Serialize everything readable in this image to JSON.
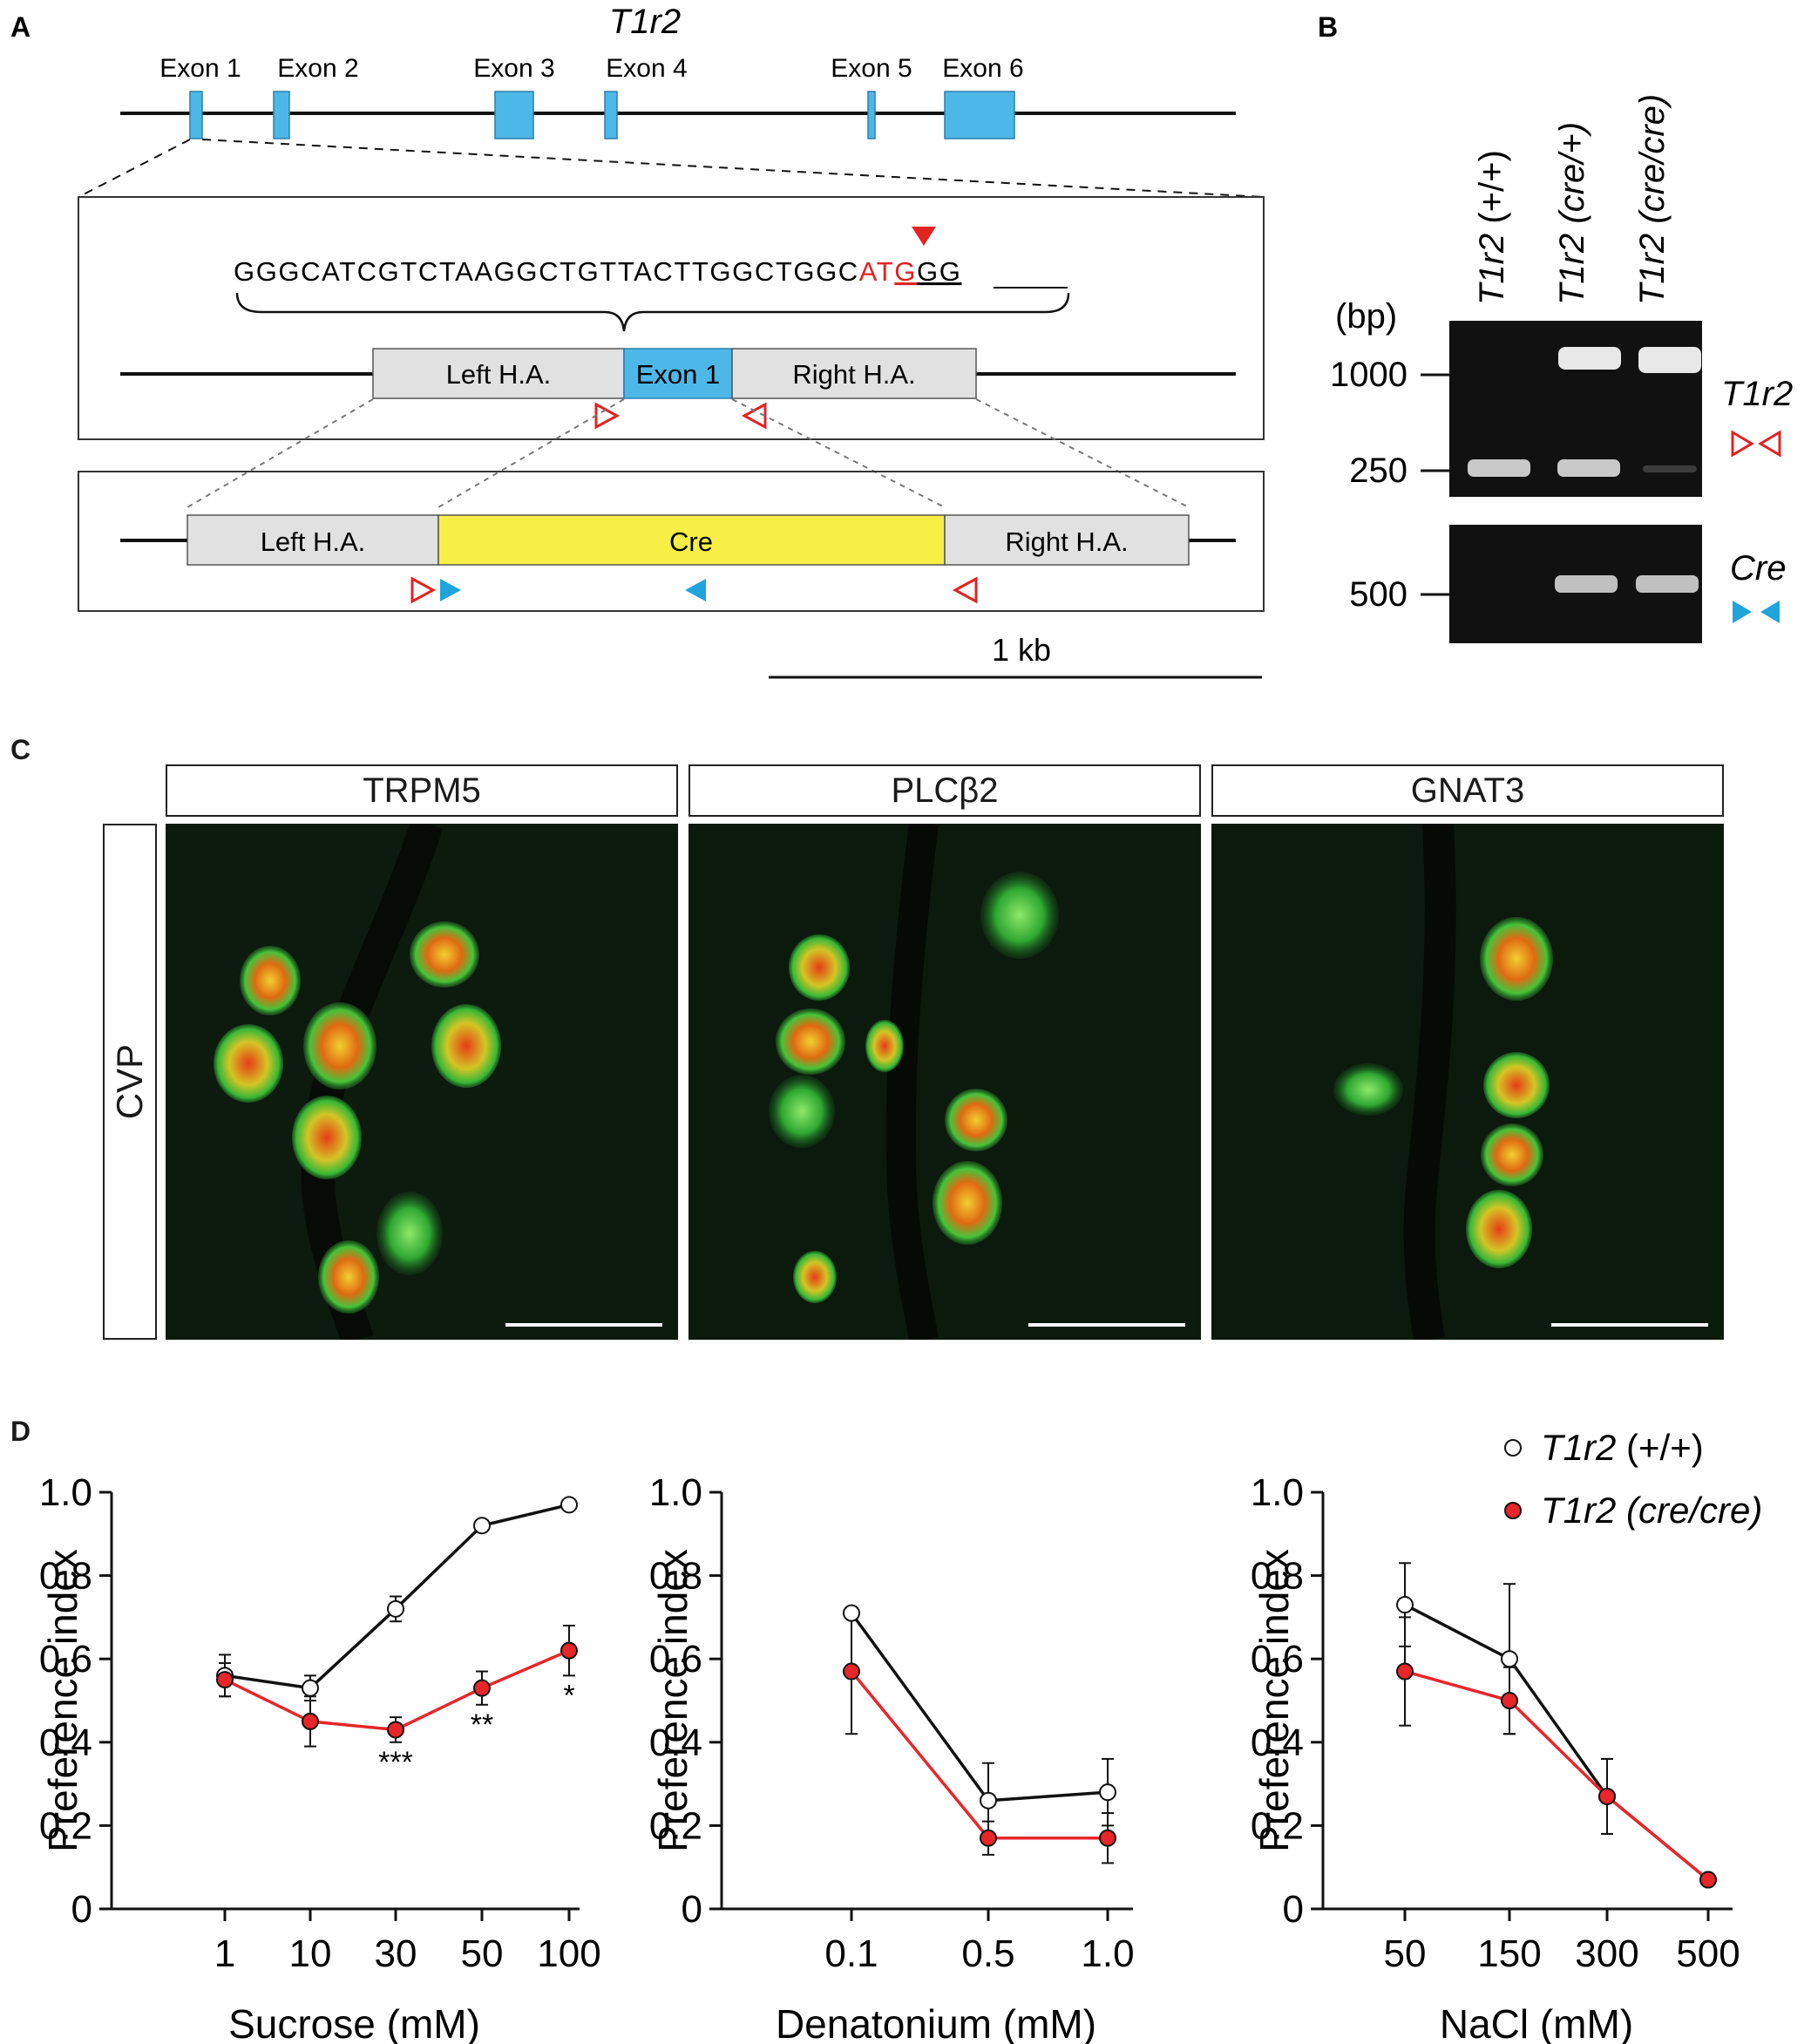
{
  "panels": {
    "a": "A",
    "b": "B",
    "c": "C",
    "d": "D"
  },
  "gene_name": "T1r2",
  "exons": [
    "Exon 1",
    "Exon 2",
    "Exon 3",
    "Exon 4",
    "Exon 5",
    "Exon 6"
  ],
  "sequence": {
    "plain": "GGGCATCGTCTAAGGCTGTTACTTGGCTGGC",
    "red_before": "AT",
    "red_underlined": "G",
    "black_underlined": "GG"
  },
  "constructs": {
    "left_ha": "Left H.A.",
    "exon1": "Exon 1",
    "right_ha": "Right H.A.",
    "cre": "Cre"
  },
  "scale_bar": "1 kb",
  "gel": {
    "lanes": [
      {
        "g": "T1r2",
        "s": " (+/+)"
      },
      {
        "g": "T1r2",
        "s": " (cre/+)"
      },
      {
        "g": "T1r2",
        "s": " (cre/cre)"
      }
    ],
    "unit": "(bp)",
    "markers": [
      "1000",
      "250",
      "500"
    ],
    "t1r2_label": "T1r2",
    "cre_label": "Cre"
  },
  "micrographs": {
    "titles": [
      "TRPM5",
      "PLCβ2",
      "GNAT3"
    ],
    "row_label": "CVP"
  },
  "legend": {
    "wt": {
      "g": "T1r2",
      "s": " (+/+)"
    },
    "ko": {
      "g": "T1r2",
      "s": " (cre/cre)"
    }
  },
  "colors": {
    "wt": "#ffffff",
    "ko": "#e8262a",
    "exon": "#4db8e8",
    "cre": "#f7ef45",
    "ha": "#e1e1e1"
  },
  "chart_data": [
    {
      "type": "line",
      "xlabel": "Sucrose (mM)",
      "ylabel": "Preference index",
      "categories": [
        "1",
        "10",
        "30",
        "50",
        "100"
      ],
      "ylim": [
        0,
        1.0
      ],
      "yticks": [
        "0",
        "0.2",
        "0.4",
        "0.6",
        "0.8",
        "1.0"
      ],
      "series": [
        {
          "name": "T1r2 (+/+)",
          "values": [
            0.56,
            0.53,
            0.72,
            0.92,
            0.97
          ],
          "err": [
            0.05,
            0.03,
            0.03,
            0.01,
            0.01
          ]
        },
        {
          "name": "T1r2 (cre/cre)",
          "values": [
            0.55,
            0.45,
            0.43,
            0.53,
            0.62
          ],
          "err": [
            0.04,
            0.06,
            0.03,
            0.04,
            0.06
          ]
        }
      ],
      "annotations": [
        "",
        "",
        "***",
        "**",
        "*"
      ]
    },
    {
      "type": "line",
      "xlabel": "Denatonium (mM)",
      "ylabel": "Preference index",
      "categories": [
        "0.1",
        "0.5",
        "1.0"
      ],
      "ylim": [
        0,
        1.0
      ],
      "yticks": [
        "0",
        "0.2",
        "0.4",
        "0.6",
        "0.8",
        "1.0"
      ],
      "series": [
        {
          "name": "T1r2 (+/+)",
          "values": [
            0.71,
            0.26,
            0.28
          ],
          "err": [
            0.01,
            0.09,
            0.08
          ]
        },
        {
          "name": "T1r2 (cre/cre)",
          "values": [
            0.57,
            0.17,
            0.17
          ],
          "err": [
            0.15,
            0.04,
            0.06
          ]
        }
      ],
      "annotations": [
        "",
        "",
        ""
      ]
    },
    {
      "type": "line",
      "xlabel": "NaCl (mM)",
      "ylabel": "Preference index",
      "categories": [
        "50",
        "150",
        "300",
        "500"
      ],
      "ylim": [
        0,
        1.0
      ],
      "yticks": [
        "0",
        "0.2",
        "0.4",
        "0.6",
        "0.8",
        "1.0"
      ],
      "series": [
        {
          "name": "T1r2 (+/+)",
          "values": [
            0.73,
            0.6,
            0.27,
            0.07
          ],
          "err": [
            0.1,
            0.18,
            0.09,
            0.01
          ]
        },
        {
          "name": "T1r2 (cre/cre)",
          "values": [
            0.57,
            0.5,
            0.27,
            0.07
          ],
          "err": [
            0.13,
            0.08,
            0.09,
            0.01
          ]
        }
      ],
      "annotations": [
        "",
        "",
        "",
        ""
      ]
    }
  ]
}
